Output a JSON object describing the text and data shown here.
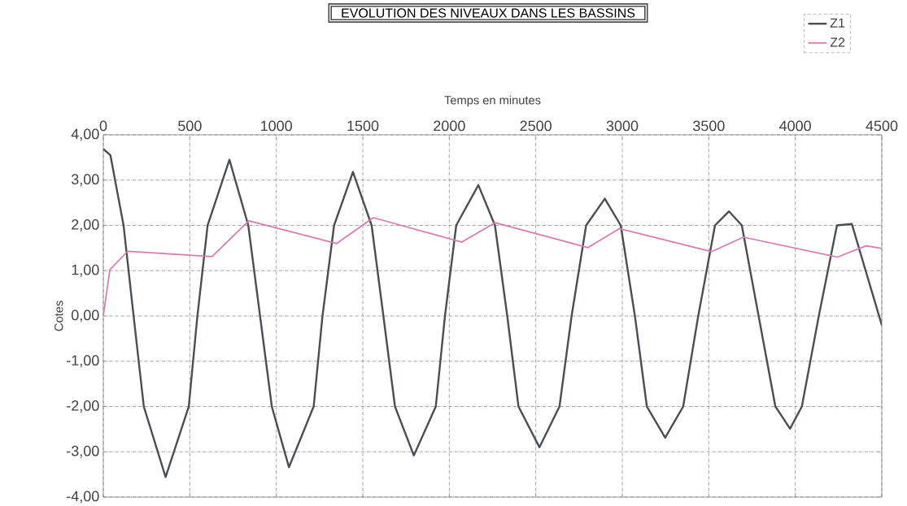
{
  "chart_data": {
    "type": "line",
    "title": "EVOLUTION DES NIVEAUX DANS LES BASSINS",
    "xlabel": "Temps en minutes",
    "ylabel": "Cotes",
    "xlim": [
      0,
      4500
    ],
    "xticks": [
      0,
      500,
      1000,
      1500,
      2000,
      2500,
      3000,
      3500,
      4000,
      4500
    ],
    "ylim": [
      -4,
      4
    ],
    "yticks": [
      {
        "value": 4,
        "label": "4,00"
      },
      {
        "value": 3,
        "label": "3,00"
      },
      {
        "value": 2,
        "label": "2,00"
      },
      {
        "value": 1,
        "label": "1,00"
      },
      {
        "value": 0,
        "label": "0,00"
      },
      {
        "value": -1,
        "label": "-1,00"
      },
      {
        "value": -2,
        "label": "-2,00"
      },
      {
        "value": -3,
        "label": "-3,00"
      },
      {
        "value": -4,
        "label": "-4,00"
      }
    ],
    "grid": true,
    "legend": "top right",
    "marker": "none",
    "line_style": "solid",
    "series": [
      {
        "name": "Z1",
        "color": "#4a4f55",
        "x": [
          0,
          41,
          117,
          175,
          234,
          360,
          494,
          544,
          603,
          729,
          838,
          906,
          974,
          1073,
          1216,
          1267,
          1334,
          1443,
          1551,
          1619,
          1686,
          1795,
          1922,
          1975,
          2040,
          2168,
          2264,
          2335,
          2400,
          2521,
          2637,
          2707,
          2791,
          2899,
          2991,
          3073,
          3142,
          3248,
          3352,
          3439,
          3536,
          3617,
          3691,
          3788,
          3885,
          3970,
          4038,
          4136,
          4241,
          4327,
          4500
        ],
        "values": [
          3.69,
          3.55,
          2.0,
          0.0,
          -2.0,
          -3.56,
          -2.0,
          0.0,
          2.0,
          3.45,
          2.0,
          0.0,
          -2.0,
          -3.34,
          -2.0,
          0.0,
          2.0,
          3.18,
          2.0,
          0.0,
          -2.0,
          -3.08,
          -2.0,
          0.0,
          2.0,
          2.89,
          2.0,
          0.0,
          -2.0,
          -2.9,
          -2.0,
          0.0,
          2.0,
          2.59,
          2.0,
          0.0,
          -2.0,
          -2.69,
          -2.0,
          0.0,
          2.0,
          2.31,
          2.0,
          0.0,
          -2.0,
          -2.49,
          -2.0,
          0.0,
          2.0,
          2.03,
          -0.2
        ]
      },
      {
        "name": "Z2",
        "color": "#d97bb0",
        "x": [
          0,
          38,
          141,
          629,
          841,
          1349,
          1561,
          2073,
          2264,
          2802,
          2983,
          3517,
          3700,
          4244,
          4410,
          4500
        ],
        "values": [
          0.0,
          1.02,
          1.43,
          1.31,
          2.1,
          1.6,
          2.17,
          1.63,
          2.06,
          1.51,
          1.93,
          1.42,
          1.74,
          1.3,
          1.55,
          1.49
        ]
      }
    ]
  }
}
